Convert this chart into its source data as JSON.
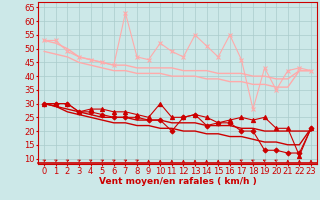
{
  "xlabel": "Vent moyen/en rafales ( km/h )",
  "ylabel_ticks": [
    10,
    15,
    20,
    25,
    30,
    35,
    40,
    45,
    50,
    55,
    60,
    65
  ],
  "xlim": [
    -0.5,
    23.5
  ],
  "ylim": [
    8,
    67
  ],
  "background_color": "#cce8e8",
  "grid_color": "#aacccc",
  "x": [
    0,
    1,
    2,
    3,
    4,
    5,
    6,
    7,
    8,
    9,
    10,
    11,
    12,
    13,
    14,
    15,
    16,
    17,
    18,
    19,
    20,
    21,
    22,
    23
  ],
  "series": [
    {
      "y": [
        53,
        53,
        49,
        47,
        46,
        45,
        44,
        63,
        47,
        46,
        52,
        49,
        47,
        55,
        51,
        47,
        55,
        46,
        28,
        43,
        35,
        42,
        43,
        42
      ],
      "color": "#ffaaaa",
      "linewidth": 0.8,
      "marker": "x",
      "markersize": 3,
      "zorder": 3
    },
    {
      "y": [
        53,
        52,
        50,
        47,
        46,
        45,
        44,
        44,
        43,
        43,
        43,
        43,
        42,
        42,
        42,
        41,
        41,
        41,
        40,
        40,
        39,
        39,
        42,
        42
      ],
      "color": "#ffaaaa",
      "linewidth": 1.0,
      "marker": null,
      "markersize": 0,
      "zorder": 1
    },
    {
      "y": [
        49,
        48,
        47,
        45,
        44,
        43,
        42,
        42,
        41,
        41,
        41,
        40,
        40,
        40,
        39,
        39,
        38,
        38,
        37,
        37,
        36,
        36,
        42,
        42
      ],
      "color": "#ffaaaa",
      "linewidth": 1.0,
      "marker": null,
      "markersize": 0,
      "zorder": 1
    },
    {
      "y": [
        30,
        30,
        30,
        27,
        28,
        28,
        27,
        27,
        26,
        25,
        30,
        25,
        25,
        26,
        25,
        23,
        24,
        25,
        24,
        25,
        21,
        21,
        11,
        21
      ],
      "color": "#cc0000",
      "linewidth": 0.8,
      "marker": "^",
      "markersize": 3,
      "zorder": 3
    },
    {
      "y": [
        30,
        29,
        28,
        27,
        26,
        25,
        25,
        25,
        24,
        24,
        24,
        23,
        23,
        23,
        22,
        22,
        22,
        21,
        21,
        20,
        20,
        20,
        20,
        20
      ],
      "color": "#cc0000",
      "linewidth": 1.0,
      "marker": null,
      "markersize": 0,
      "zorder": 2
    },
    {
      "y": [
        30,
        29,
        27,
        26,
        25,
        24,
        23,
        23,
        22,
        22,
        21,
        21,
        20,
        20,
        19,
        19,
        18,
        18,
        17,
        16,
        16,
        15,
        15,
        21
      ],
      "color": "#cc0000",
      "linewidth": 1.0,
      "marker": null,
      "markersize": 0,
      "zorder": 2
    },
    {
      "y": [
        30,
        30,
        30,
        27,
        27,
        26,
        25,
        25,
        25,
        24,
        24,
        20,
        25,
        26,
        22,
        23,
        23,
        20,
        20,
        13,
        13,
        12,
        12,
        21
      ],
      "color": "#cc0000",
      "linewidth": 0.8,
      "marker": "D",
      "markersize": 2.5,
      "zorder": 3
    }
  ],
  "arrow_angles": [
    45,
    45,
    45,
    45,
    45,
    45,
    45,
    45,
    45,
    0,
    0,
    0,
    0,
    0,
    0,
    0,
    0,
    315,
    315,
    315,
    315,
    0,
    0,
    0
  ],
  "xlabel_color": "#cc0000",
  "xlabel_fontsize": 6.5,
  "tick_fontsize": 6,
  "tick_color": "#cc0000",
  "spine_color": "#cc0000",
  "hline_y": 8.5
}
